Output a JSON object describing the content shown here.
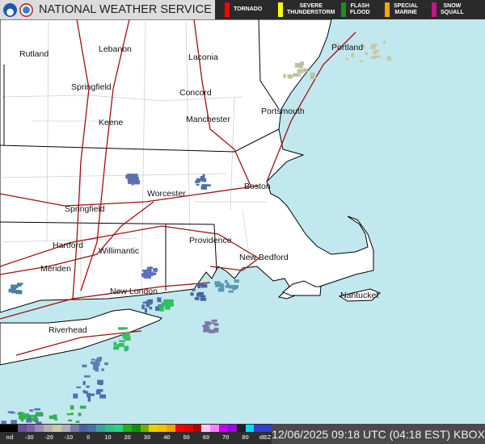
{
  "header": {
    "title": "NATIONAL WEATHER SERVICE",
    "logos": [
      "noaa-logo",
      "nws-logo"
    ]
  },
  "warnings": [
    {
      "label1": "TORNADO",
      "label2": "",
      "color": "#ff0000"
    },
    {
      "label1": "SEVERE",
      "label2": "THUNDERSTORM",
      "color": "#ffff00"
    },
    {
      "label1": "FLASH",
      "label2": "FLOOD",
      "color": "#228b22"
    },
    {
      "label1": "SPECIAL",
      "label2": "MARINE",
      "color": "#ffa500"
    },
    {
      "label1": "SNOW",
      "label2": "SQUALL",
      "color": "#c71585"
    }
  ],
  "cities": [
    {
      "name": "Rutland"
    },
    {
      "name": "Lebanon"
    },
    {
      "name": "Laconia"
    },
    {
      "name": "Portland"
    },
    {
      "name": "Springfield"
    },
    {
      "name": "Concord"
    },
    {
      "name": "Portsmouth"
    },
    {
      "name": "Keene"
    },
    {
      "name": "Manchester"
    },
    {
      "name": "Worcester"
    },
    {
      "name": "Boston"
    },
    {
      "name": "Springfield"
    },
    {
      "name": "Hartford"
    },
    {
      "name": "Providence"
    },
    {
      "name": "Willimantic"
    },
    {
      "name": "Meriden"
    },
    {
      "name": "New Bedford"
    },
    {
      "name": "New London"
    },
    {
      "name": "Nantucket"
    },
    {
      "name": "Riverhead"
    }
  ],
  "legend": {
    "ticks": [
      "nd",
      "-30",
      "-20",
      "-10",
      "0",
      "10",
      "20",
      "30",
      "40",
      "50",
      "60",
      "70",
      "80",
      "dBZ"
    ],
    "colors": [
      "#000000",
      "#000000",
      "#6a4f9a",
      "#7d64a8",
      "#9a8db0",
      "#b4b0b0",
      "#c8c8a8",
      "#a8b0c0",
      "#7a7aa8",
      "#4a62a0",
      "#4a70b0",
      "#40a0a0",
      "#30c090",
      "#30d080",
      "#20b020",
      "#109010",
      "#70b000",
      "#e8d000",
      "#f0c000",
      "#f8a000",
      "#ff0000",
      "#e00000",
      "#b00000",
      "#ffc8ff",
      "#ff80ff",
      "#c000ff",
      "#a000e0",
      "#202020",
      "#00e0f0",
      "#3040d0",
      "#3040d0"
    ]
  },
  "timestamp": "12/06/2025 09:18 UTC (04:18 EST) KBOX"
}
